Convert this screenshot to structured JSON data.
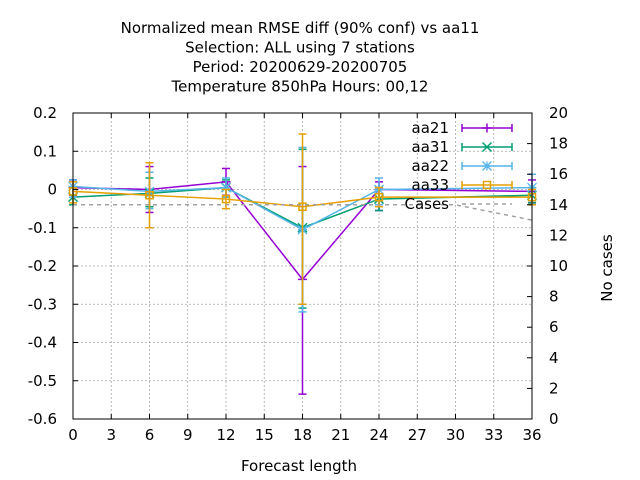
{
  "chart_data": {
    "type": "line",
    "title_lines": [
      "Normalized mean RMSE diff (90% conf) vs aa11",
      "Selection: ALL using     7 stations",
      "Period: 20200629-20200705",
      "Temperature 850hPa   Hours:  00,12"
    ],
    "xlabel": "Forecast length",
    "ylabel": "",
    "y2label": "No cases",
    "xlim": [
      0,
      36
    ],
    "ylim": [
      -0.6,
      0.2
    ],
    "y2lim": [
      0,
      20
    ],
    "xticks": [
      0,
      3,
      6,
      9,
      12,
      15,
      18,
      21,
      24,
      27,
      30,
      33,
      36
    ],
    "yticks": [
      -0.6,
      -0.5,
      -0.4,
      -0.3,
      -0.2,
      -0.1,
      0,
      0.1,
      0.2
    ],
    "yticklabels": [
      "-0.6",
      "-0.5",
      "-0.4",
      "-0.3",
      "-0.2",
      "-0.1",
      "0",
      "0.1",
      "0.2"
    ],
    "y2ticks": [
      0,
      2,
      4,
      6,
      8,
      10,
      12,
      14,
      16,
      18,
      20
    ],
    "grid": true,
    "legend_position": "top-right",
    "series": [
      {
        "name": "aa21",
        "color": "#9400d3",
        "marker": "plus",
        "x": [
          0,
          6,
          12,
          18,
          24,
          36
        ],
        "y": [
          0.005,
          0.0,
          0.02,
          -0.235,
          0.0,
          -0.005
        ],
        "err_low": [
          -0.015,
          -0.06,
          -0.015,
          -0.535,
          -0.055,
          -0.035
        ],
        "err_high": [
          0.025,
          0.06,
          0.055,
          0.06,
          0.02,
          0.025
        ]
      },
      {
        "name": "aa31",
        "color": "#009e73",
        "marker": "cross",
        "x": [
          0,
          6,
          12,
          18,
          24,
          36
        ],
        "y": [
          -0.02,
          -0.01,
          0.005,
          -0.1,
          -0.025,
          -0.015
        ],
        "err_low": [
          -0.04,
          -0.045,
          -0.02,
          -0.31,
          -0.055,
          -0.035
        ],
        "err_high": [
          0.005,
          0.03,
          0.025,
          0.105,
          0.005,
          0.005
        ]
      },
      {
        "name": "aa22",
        "color": "#56b4e9",
        "marker": "star",
        "x": [
          0,
          6,
          12,
          18,
          24,
          36
        ],
        "y": [
          0.008,
          -0.005,
          0.005,
          -0.105,
          0.0,
          0.005
        ],
        "err_low": [
          -0.02,
          -0.05,
          -0.02,
          -0.32,
          -0.04,
          -0.03
        ],
        "err_high": [
          0.025,
          0.045,
          0.03,
          0.11,
          0.03,
          0.04
        ]
      },
      {
        "name": "aa33",
        "color": "#e69f00",
        "marker": "square",
        "x": [
          0,
          6,
          12,
          18,
          24,
          36
        ],
        "y": [
          -0.005,
          -0.015,
          -0.025,
          -0.045,
          -0.02,
          -0.02
        ],
        "err_low": [
          -0.035,
          -0.1,
          -0.05,
          -0.3,
          -0.045,
          -0.04
        ],
        "err_high": [
          0.02,
          0.07,
          0.0,
          0.145,
          0.005,
          0.0
        ]
      },
      {
        "name": "Cases",
        "color": "#a0a0a0",
        "dashed": true,
        "axis": "y2",
        "x": [
          0,
          6,
          12,
          18,
          24,
          30,
          36
        ],
        "y": [
          14,
          14,
          14,
          14,
          14,
          14,
          13
        ]
      }
    ]
  }
}
